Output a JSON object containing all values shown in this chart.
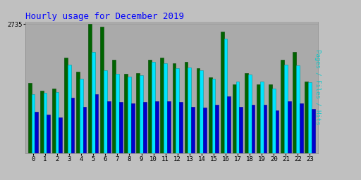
{
  "title": "Hourly usage for December 2019",
  "ylabel": "Pages / Files / Hits",
  "hours": [
    0,
    1,
    2,
    3,
    4,
    5,
    6,
    7,
    8,
    9,
    10,
    11,
    12,
    13,
    14,
    15,
    16,
    17,
    18,
    19,
    20,
    21,
    22,
    23
  ],
  "pages": [
    1480,
    1320,
    1360,
    2020,
    1720,
    2735,
    2680,
    1980,
    1680,
    1700,
    1980,
    2020,
    1900,
    1940,
    1800,
    1600,
    2580,
    1460,
    1700,
    1460,
    1460,
    1980,
    2150,
    1520
  ],
  "files": [
    1250,
    1280,
    1290,
    1880,
    1580,
    2150,
    1750,
    1680,
    1620,
    1650,
    1930,
    1900,
    1800,
    1810,
    1760,
    1580,
    2430,
    1510,
    1670,
    1520,
    1370,
    1880,
    1860,
    1500
  ],
  "hits": [
    880,
    820,
    760,
    1180,
    980,
    1250,
    1100,
    1080,
    1060,
    1080,
    1100,
    1100,
    1080,
    980,
    960,
    1020,
    1200,
    980,
    1020,
    1020,
    900,
    1100,
    1060,
    940
  ],
  "ymax": 2735,
  "bar_colors": [
    "#006400",
    "#00e5ff",
    "#0000cd"
  ],
  "edge_colors": [
    "#004400",
    "#009999",
    "#000099"
  ],
  "bg_color": "#c0c0c0",
  "plot_bg": "#aaaaaa",
  "title_color": "#0000ff",
  "ylabel_color": "#00cccc",
  "tick_color": "#000000",
  "bar_width": 0.28,
  "figsize": [
    5.12,
    2.56
  ],
  "dpi": 100
}
